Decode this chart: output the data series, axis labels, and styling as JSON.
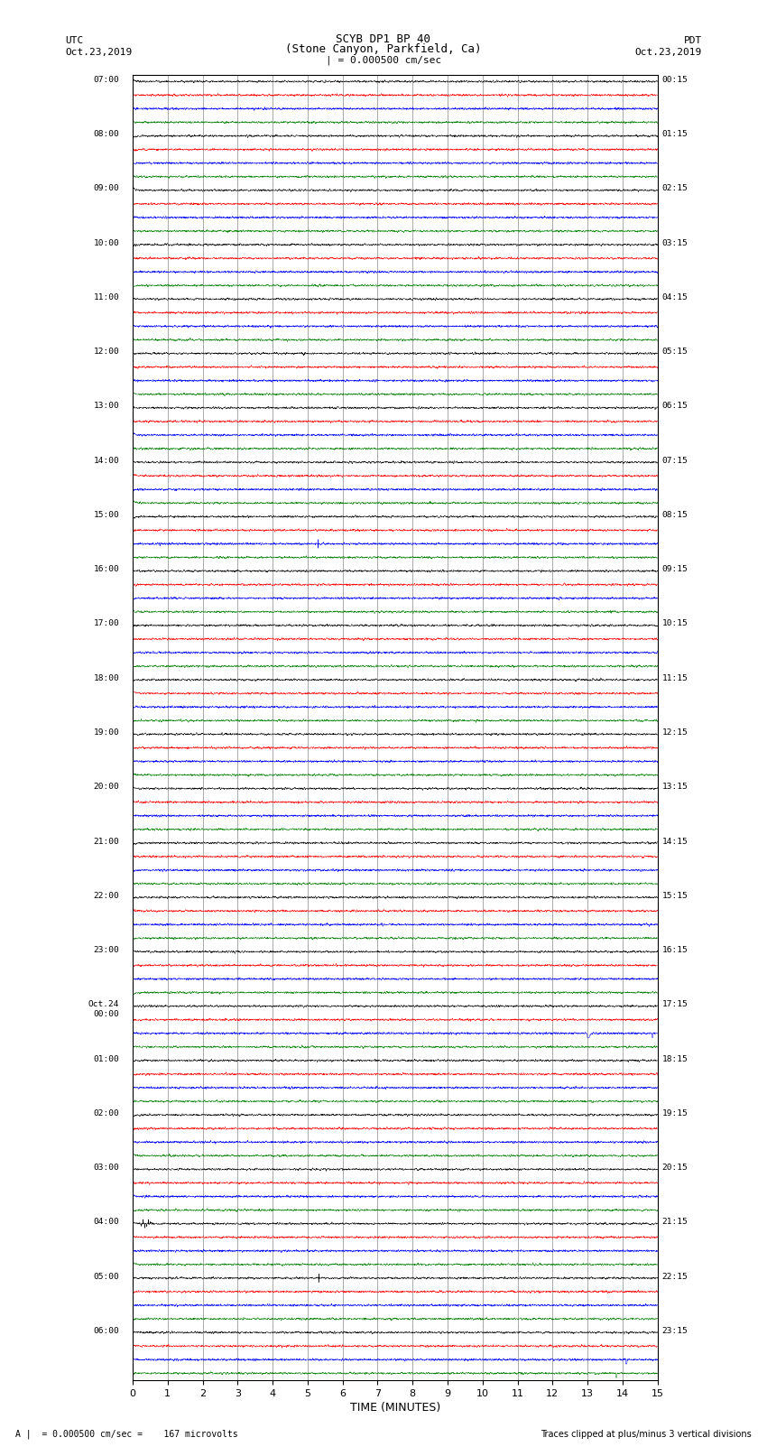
{
  "title_line1": "SCYB DP1 BP 40",
  "title_line2": "(Stone Canyon, Parkfield, Ca)",
  "scale_label": "| = 0.000500 cm/sec",
  "left_label_top": "UTC",
  "left_label_date": "Oct.23,2019",
  "right_label_top": "PDT",
  "right_label_date": "Oct.23,2019",
  "xlabel": "TIME (MINUTES)",
  "bottom_left": "A |  = 0.000500 cm/sec =    167 microvolts",
  "bottom_right": "Traces clipped at plus/minus 3 vertical divisions",
  "colors": [
    "black",
    "red",
    "blue",
    "green"
  ],
  "x_ticks": [
    0,
    1,
    2,
    3,
    4,
    5,
    6,
    7,
    8,
    9,
    10,
    11,
    12,
    13,
    14,
    15
  ],
  "x_min": 0,
  "x_max": 15,
  "bg_color": "#ffffff",
  "left_utc_labels": [
    "07:00",
    "08:00",
    "09:00",
    "10:00",
    "11:00",
    "12:00",
    "13:00",
    "14:00",
    "15:00",
    "16:00",
    "17:00",
    "18:00",
    "19:00",
    "20:00",
    "21:00",
    "22:00",
    "23:00",
    "Oct.24\n00:00",
    "01:00",
    "02:00",
    "03:00",
    "04:00",
    "05:00",
    "06:00"
  ],
  "right_pdt_labels": [
    "00:15",
    "01:15",
    "02:15",
    "03:15",
    "04:15",
    "05:15",
    "06:15",
    "07:15",
    "08:15",
    "09:15",
    "10:15",
    "11:15",
    "12:15",
    "13:15",
    "14:15",
    "15:15",
    "16:15",
    "17:15",
    "18:15",
    "19:15",
    "20:15",
    "21:15",
    "22:15",
    "23:15"
  ],
  "noise_amp": 0.035,
  "n_points": 3000,
  "linewidth": 0.35,
  "tick_linewidth": 0.5,
  "tick_color": "#888888"
}
